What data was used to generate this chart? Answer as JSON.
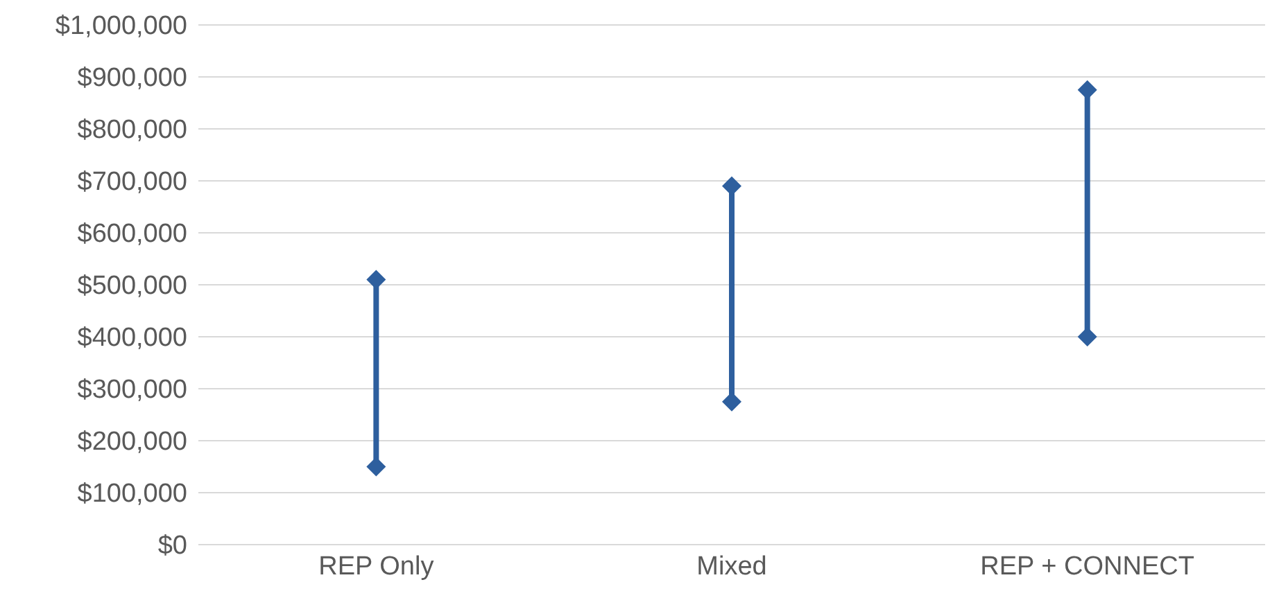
{
  "chart_data": {
    "type": "line",
    "categories": [
      "REP Only",
      "Mixed",
      "REP + CONNECT"
    ],
    "series": [
      {
        "x": [
          "REP Only",
          "REP Only"
        ],
        "values": [
          150000,
          510000
        ],
        "color": "#2e5f9e"
      },
      {
        "x": [
          "Mixed",
          "Mixed"
        ],
        "values": [
          275000,
          690000
        ],
        "color": "#2e5f9e"
      },
      {
        "x": [
          "REP + CONNECT",
          "REP + CONNECT"
        ],
        "values": [
          400000,
          875000
        ],
        "color": "#2e5f9e"
      }
    ],
    "marker": "diamond",
    "line_style": "solid",
    "ylim": [
      0,
      1000000
    ],
    "yticks": [
      {
        "value": 0,
        "label": "$0"
      },
      {
        "value": 100000,
        "label": "$100,000"
      },
      {
        "value": 200000,
        "label": "$200,000"
      },
      {
        "value": 300000,
        "label": "$300,000"
      },
      {
        "value": 400000,
        "label": "$400,000"
      },
      {
        "value": 500000,
        "label": "$500,000"
      },
      {
        "value": 600000,
        "label": "$600,000"
      },
      {
        "value": 700000,
        "label": "$700,000"
      },
      {
        "value": 800000,
        "label": "$800,000"
      },
      {
        "value": 900000,
        "label": "$900,000"
      },
      {
        "value": 1000000,
        "label": "$1,000,000"
      }
    ],
    "grid": "y"
  }
}
